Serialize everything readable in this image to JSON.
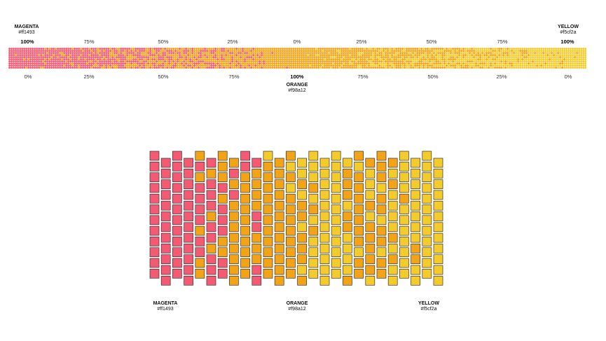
{
  "colors": {
    "magenta": {
      "name": "MAGENTA",
      "hex": "#ff1493",
      "display": "#f55a73"
    },
    "orange": {
      "name": "ORANGE",
      "hex": "#f98a12",
      "display": "#f3a416"
    },
    "yellow": {
      "name": "YELLOW",
      "hex": "#f5cf2a",
      "display": "#f3cc2c"
    }
  },
  "strip": {
    "top_labels": [
      "100%",
      "75%",
      "50%",
      "25%",
      "0%",
      "25%",
      "50%",
      "75%",
      "100%"
    ],
    "bottom_labels": [
      "0%",
      "25%",
      "50%",
      "75%",
      "100%",
      "75%",
      "50%",
      "25%",
      "0%"
    ]
  },
  "grid": {
    "columns": 26,
    "rows": 12,
    "column_magenta_share": [
      1,
      1,
      1,
      0.95,
      0.55,
      0.45,
      0.55,
      0.35,
      0.15,
      0.15,
      0.05,
      0.02,
      0,
      0,
      0,
      0,
      0,
      0,
      0,
      0,
      0,
      0,
      0,
      0,
      0,
      0
    ],
    "column_yellow_share": [
      0,
      0,
      0,
      0,
      0,
      0,
      0,
      0,
      0,
      0,
      0.05,
      0.1,
      0.35,
      0.6,
      0.7,
      0.9,
      0.95,
      0.6,
      0.5,
      0.45,
      0.35,
      0.6,
      0.85,
      0.9,
      1,
      1
    ]
  },
  "bottom_legend": [
    {
      "name": "MAGENTA",
      "hex": "#ff1493"
    },
    {
      "name": "ORANGE",
      "hex": "#f98a12"
    },
    {
      "name": "YELLOW",
      "hex": "#f5cf2a"
    }
  ]
}
